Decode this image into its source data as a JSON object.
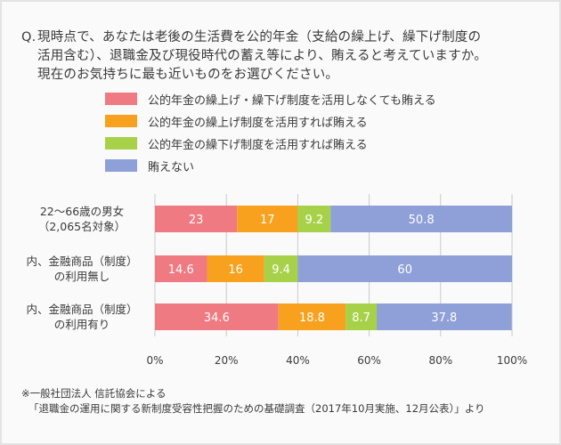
{
  "question": {
    "prefix": "Q.",
    "lines": [
      "現時点で、あなたは老後の生活費を公的年金（支給の繰上げ、繰下げ制度の",
      "活用含む）、退職金及び現役時代の蓄え等により、賄えると考えていますか。",
      "現在のお気持ちに最も近いものをお選びください。"
    ]
  },
  "chart_data": {
    "type": "bar",
    "orientation": "horizontal",
    "stacked": true,
    "categories": [
      [
        "22〜66歳の男女",
        "（2,065名対象）"
      ],
      [
        "内、金融商品（制度）",
        "の利用無し"
      ],
      [
        "内、金融商品（制度）",
        "の利用有り"
      ]
    ],
    "series": [
      {
        "name": "公的年金の繰上げ・繰下げ制度を活用しなくても賄える",
        "color": "#ef7a82",
        "values": [
          23,
          14.6,
          34.6
        ]
      },
      {
        "name": "公的年金の繰上げ制度を活用すれば賄える",
        "color": "#f7a11e",
        "values": [
          17,
          16,
          18.8
        ]
      },
      {
        "name": "公的年金の繰下げ制度を活用すれば賄える",
        "color": "#a8d14a",
        "values": [
          9.2,
          9.4,
          8.7
        ]
      },
      {
        "name": "賄えない",
        "color": "#8fa0d8",
        "values": [
          50.8,
          60,
          37.8
        ]
      }
    ],
    "xlim": [
      0,
      100
    ],
    "x_ticks": [
      "0%",
      "20%",
      "40%",
      "60%",
      "80%",
      "100%"
    ],
    "data_label_color": "#ffffff",
    "legend_position": "top"
  },
  "footnote": {
    "line1": "※一般社団法人 信託協会による",
    "line2": "「退職金の運用に関する新制度受容性把握のための基礎調査（2017年10月実施、12月公表）」より"
  }
}
